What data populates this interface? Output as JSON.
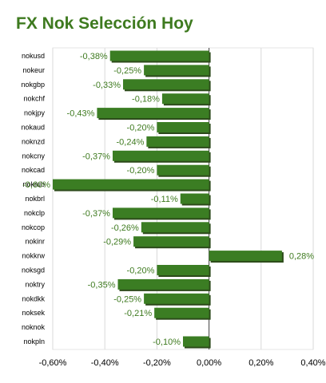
{
  "chart_data": {
    "type": "bar",
    "orientation": "horizontal",
    "title": "FX Nok Selección Hoy",
    "categories": [
      "nokusd",
      "nokeur",
      "nokgbp",
      "nokchf",
      "nokjpy",
      "nokaud",
      "noknzd",
      "nokcny",
      "nokcad",
      "nokrub",
      "nokbrl",
      "nokclp",
      "nokcop",
      "nokinr",
      "nokkrw",
      "noksgd",
      "noktry",
      "nokdkk",
      "noksek",
      "noknok",
      "nokpln"
    ],
    "values": [
      -0.38,
      -0.25,
      -0.33,
      -0.18,
      -0.43,
      -0.2,
      -0.24,
      -0.37,
      -0.2,
      -0.6,
      -0.11,
      -0.37,
      -0.26,
      -0.29,
      0.28,
      -0.2,
      -0.35,
      -0.25,
      -0.21,
      null,
      -0.1
    ],
    "value_labels": [
      "-0,38%",
      "-0,25%",
      "-0,33%",
      "-0,18%",
      "-0,43%",
      "-0,20%",
      "-0,24%",
      "-0,37%",
      "-0,20%",
      "-0,60%",
      "-0,11%",
      "-0,37%",
      "-0,26%",
      "-0,29%",
      "0,28%",
      "-0,20%",
      "-0,35%",
      "-0,25%",
      "-0,21%",
      "",
      "-0,10%"
    ],
    "x_ticks": [
      -0.6,
      -0.4,
      -0.2,
      0.0,
      0.2,
      0.4
    ],
    "x_tick_labels": [
      "-0,60%",
      "-0,40%",
      "-0,20%",
      "0,00%",
      "0,20%",
      "0,40%"
    ],
    "xlim": [
      -0.6,
      0.4
    ],
    "xlabel": "",
    "ylabel": "",
    "grid": true,
    "colors": {
      "bar": "#3b7d23",
      "bar_shadow": "#2c4a1a",
      "label": "#3e7a1f",
      "grid": "#d9d9d9"
    }
  }
}
